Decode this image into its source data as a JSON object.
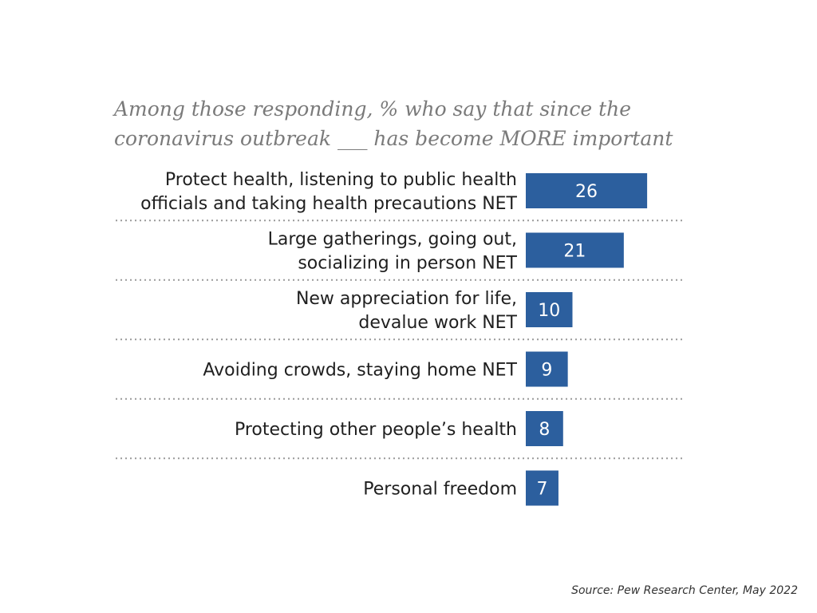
{
  "subtitle": {
    "line1": "Among those responding, % who say that since the",
    "line2": "coronavirus outbreak ___ has become MORE important"
  },
  "source": "Source: Pew Research Center, May 2022",
  "colors": {
    "bar": "#2c5f9e",
    "bar_text": "#ffffff",
    "label_text": "#1f1f1f",
    "divider": "#9a9a9a"
  },
  "chart_data": {
    "type": "bar",
    "orientation": "horizontal",
    "categories": [
      [
        "Protect health, listening to public health",
        "officials and taking health precautions NET"
      ],
      [
        "Large gatherings, going out,",
        "socializing in person NET"
      ],
      [
        "New appreciation for life,",
        "devalue work NET"
      ],
      [
        "Avoiding crowds, staying home NET"
      ],
      [
        "Protecting other people’s health"
      ],
      [
        "Personal freedom"
      ]
    ],
    "values": [
      26,
      21,
      10,
      9,
      8,
      7
    ],
    "data_labels": [
      "26",
      "21",
      "10",
      "9",
      "8",
      "7"
    ],
    "grid": false,
    "separators": "dotted"
  }
}
